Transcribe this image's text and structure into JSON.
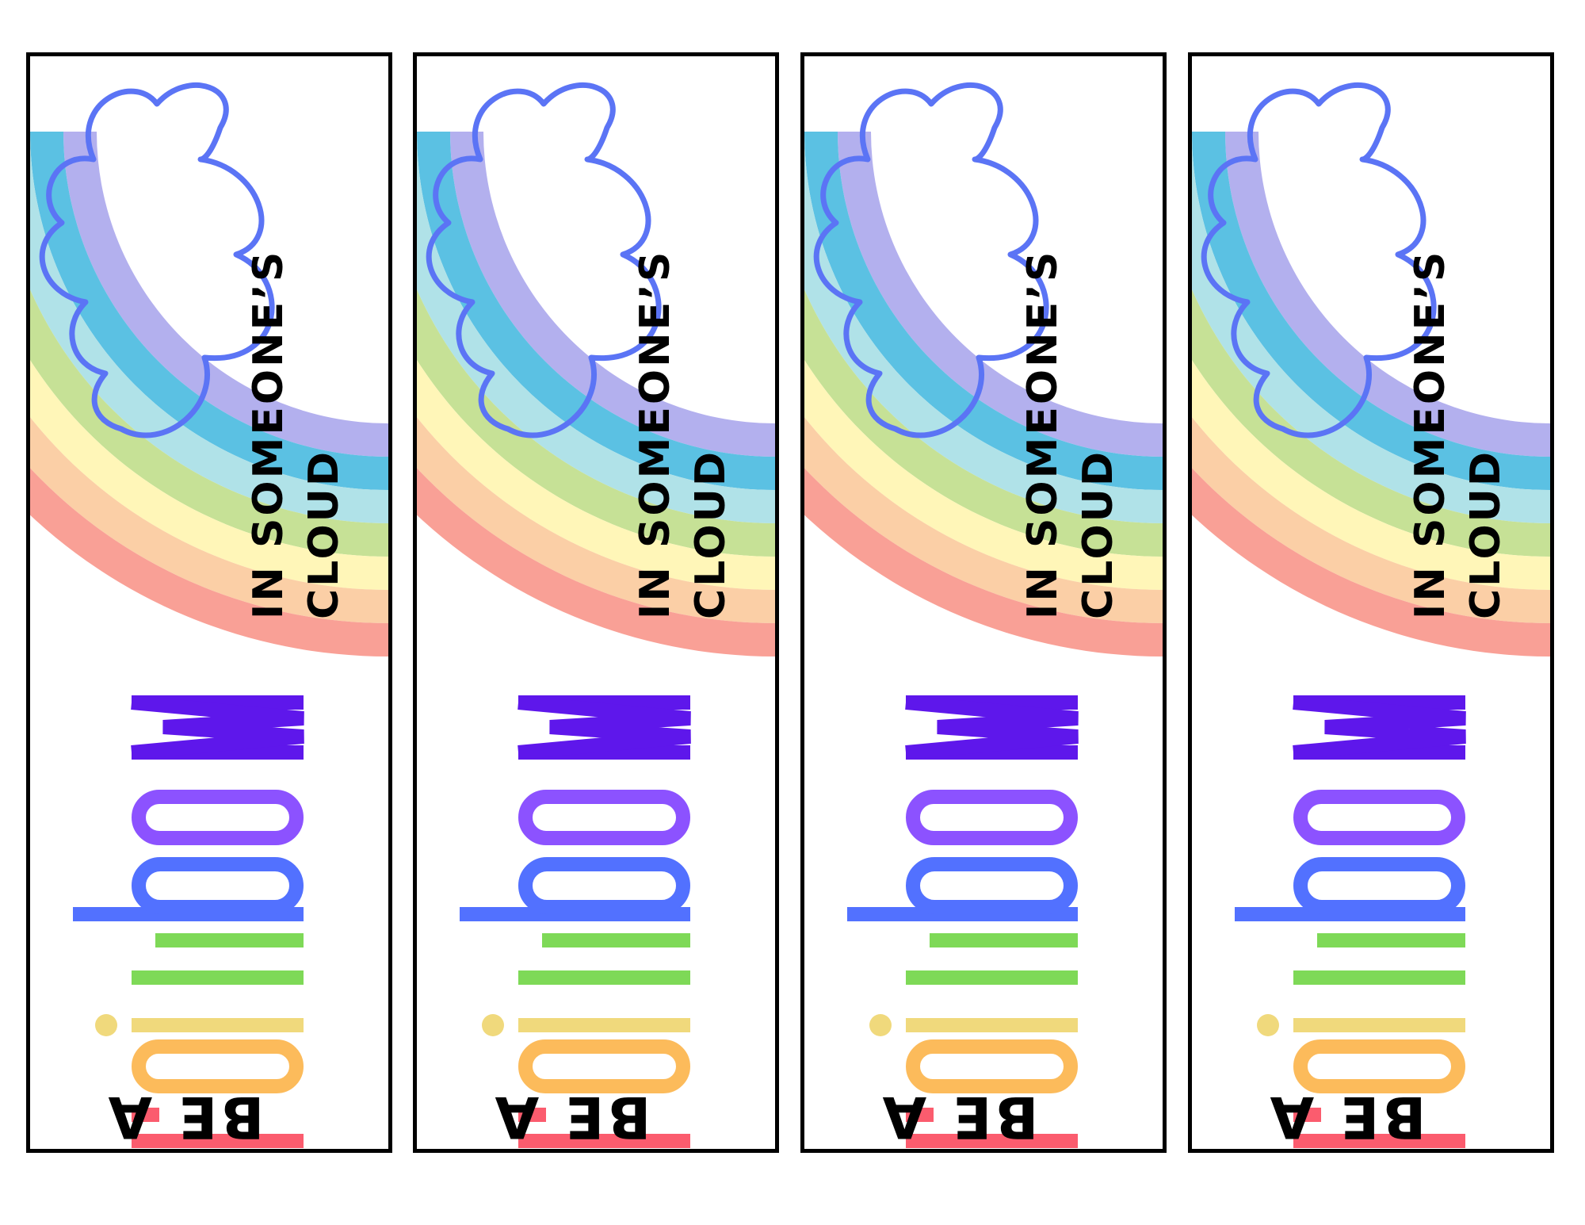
{
  "bookmarks": [
    {
      "be_a": "BE A",
      "word": "rainbow",
      "line1": "IN SOMEONE’S",
      "line2": "CLOUD"
    },
    {
      "be_a": "BE A",
      "word": "rainbow",
      "line1": "IN SOMEONE’S",
      "line2": "CLOUD"
    },
    {
      "be_a": "BE A",
      "word": "rainbow",
      "line1": "IN SOMEONE’S",
      "line2": "CLOUD"
    },
    {
      "be_a": "BE A",
      "word": "rainbow",
      "line1": "IN SOMEONE’S",
      "line2": "CLOUD"
    }
  ],
  "colors": {
    "border": "#000000",
    "cloud_outline": "#5b74f5",
    "arc_bands": [
      "#b3b0ee",
      "#5bc1e3",
      "#b0e2e8",
      "#c6e196",
      "#fff6b8",
      "#fbcfa6",
      "#f9a096"
    ],
    "letters": {
      "r": "#fb5c6e",
      "a": "#fcbb5b",
      "i": "#f0d97c",
      "n": "#7ed957",
      "b": "#5271ff",
      "o": "#8c52ff",
      "w": "#5e17eb"
    }
  },
  "icons": [
    "cloud-icon",
    "rainbow-arc"
  ]
}
